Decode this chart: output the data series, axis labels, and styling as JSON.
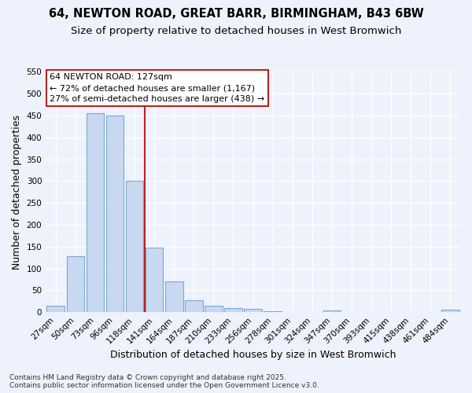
{
  "title": "64, NEWTON ROAD, GREAT BARR, BIRMINGHAM, B43 6BW",
  "subtitle": "Size of property relative to detached houses in West Bromwich",
  "xlabel": "Distribution of detached houses by size in West Bromwich",
  "ylabel": "Number of detached properties",
  "categories": [
    "27sqm",
    "50sqm",
    "73sqm",
    "96sqm",
    "118sqm",
    "141sqm",
    "164sqm",
    "187sqm",
    "210sqm",
    "233sqm",
    "256sqm",
    "278sqm",
    "301sqm",
    "324sqm",
    "347sqm",
    "370sqm",
    "393sqm",
    "415sqm",
    "438sqm",
    "461sqm",
    "484sqm"
  ],
  "values": [
    14,
    128,
    455,
    450,
    300,
    148,
    70,
    27,
    14,
    9,
    7,
    3,
    0,
    0,
    4,
    0,
    0,
    0,
    0,
    0,
    5
  ],
  "bar_color": "#c8d8f0",
  "bar_edge_color": "#7aaad0",
  "vline_color": "#bb2222",
  "annotation_line1": "64 NEWTON ROAD: 127sqm",
  "annotation_line2": "← 72% of detached houses are smaller (1,167)",
  "annotation_line3": "27% of semi-detached houses are larger (438) →",
  "annotation_box_color": "#ffffff",
  "annotation_box_edge": "#bb2222",
  "ylim": [
    0,
    550
  ],
  "yticks": [
    0,
    50,
    100,
    150,
    200,
    250,
    300,
    350,
    400,
    450,
    500,
    550
  ],
  "footer_line1": "Contains HM Land Registry data © Crown copyright and database right 2025.",
  "footer_line2": "Contains public sector information licensed under the Open Government Licence v3.0.",
  "bg_color": "#eef2fc",
  "grid_color": "#ffffff",
  "title_fontsize": 10.5,
  "subtitle_fontsize": 9.5,
  "tick_fontsize": 7.5,
  "label_fontsize": 9,
  "annotation_fontsize": 8,
  "footer_fontsize": 6.5
}
